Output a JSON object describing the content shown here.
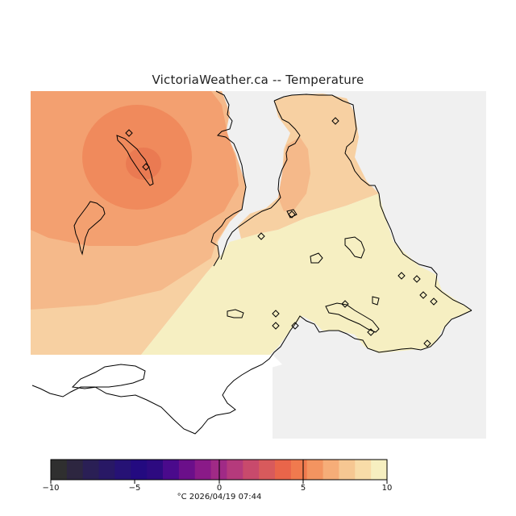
{
  "title": "VictoriaWeather.ca -- Temperature",
  "colorbar": {
    "ticks": [
      "−10",
      "−5",
      "0",
      "5",
      "10"
    ],
    "colors": [
      "#2f2f2f",
      "#2d2640",
      "#2a1f55",
      "#281865",
      "#261275",
      "#230a80",
      "#2d0a80",
      "#4a0a8c",
      "#6b0f8a",
      "#8a1a88",
      "#a02a86",
      "#b53a7c",
      "#c84a6c",
      "#d85a5c",
      "#e9654a",
      "#f07a4e",
      "#f39460",
      "#f6ad78",
      "#f6c792",
      "#f8dca8",
      "#f6efc0"
    ],
    "footer": "°C  2026/04/19 07:44"
  },
  "colors": {
    "sea": "#f0f0f0",
    "warm1": "#f08a5c",
    "warm2": "#f3a070",
    "warm3": "#f5b98a",
    "warm4": "#f7d0a2",
    "warm5": "#f6efc2"
  }
}
